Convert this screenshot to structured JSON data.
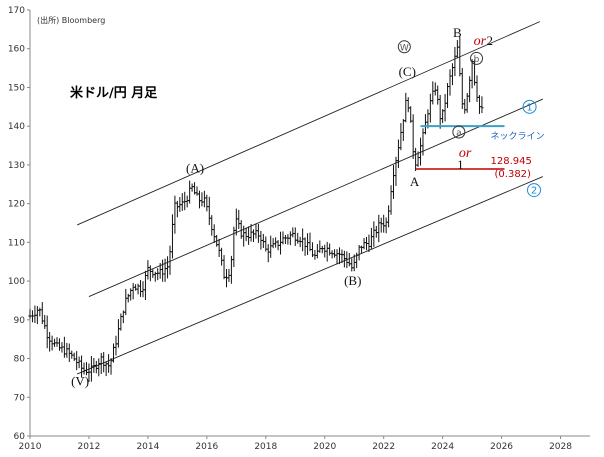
{
  "chart_data": {
    "type": "ohlc",
    "title": "米ドル/円 月足",
    "source": "(出所) Bloomberg",
    "xlim": [
      2010,
      2029
    ],
    "ylim": [
      60,
      170
    ],
    "x_ticks": [
      2010,
      2012,
      2014,
      2016,
      2018,
      2020,
      2022,
      2024,
      2026,
      2028
    ],
    "y_ticks": [
      60,
      70,
      80,
      90,
      100,
      110,
      120,
      130,
      140,
      150,
      160,
      170
    ],
    "price_path": [
      [
        2010.0,
        91
      ],
      [
        2010.3,
        93
      ],
      [
        2010.6,
        86
      ],
      [
        2010.9,
        83
      ],
      [
        2011.2,
        82
      ],
      [
        2011.5,
        80
      ],
      [
        2011.8,
        77
      ],
      [
        2012.1,
        77
      ],
      [
        2012.4,
        80
      ],
      [
        2012.7,
        78
      ],
      [
        2012.9,
        84
      ],
      [
        2013.2,
        94
      ],
      [
        2013.5,
        99
      ],
      [
        2013.8,
        98
      ],
      [
        2014.0,
        103
      ],
      [
        2014.4,
        102
      ],
      [
        2014.7,
        104
      ],
      [
        2014.9,
        119
      ],
      [
        2015.2,
        120
      ],
      [
        2015.5,
        124
      ],
      [
        2015.7,
        121
      ],
      [
        2015.9,
        121
      ],
      [
        2016.1,
        116
      ],
      [
        2016.4,
        108
      ],
      [
        2016.6,
        101
      ],
      [
        2016.8,
        103
      ],
      [
        2016.95,
        116
      ],
      [
        2017.2,
        112
      ],
      [
        2017.5,
        112
      ],
      [
        2017.8,
        112
      ],
      [
        2018.0,
        108
      ],
      [
        2018.3,
        109
      ],
      [
        2018.6,
        111
      ],
      [
        2018.9,
        112
      ],
      [
        2019.2,
        111
      ],
      [
        2019.5,
        108
      ],
      [
        2019.7,
        106
      ],
      [
        2019.9,
        109
      ],
      [
        2020.2,
        108
      ],
      [
        2020.5,
        107
      ],
      [
        2020.8,
        105
      ],
      [
        2020.95,
        103
      ],
      [
        2021.2,
        109
      ],
      [
        2021.5,
        110
      ],
      [
        2021.9,
        115
      ],
      [
        2022.1,
        115
      ],
      [
        2022.3,
        127
      ],
      [
        2022.5,
        135
      ],
      [
        2022.8,
        148
      ],
      [
        2022.95,
        138
      ],
      [
        2023.05,
        130
      ],
      [
        2023.3,
        136
      ],
      [
        2023.5,
        144
      ],
      [
        2023.75,
        150
      ],
      [
        2023.95,
        141
      ],
      [
        2024.2,
        151
      ],
      [
        2024.4,
        157
      ],
      [
        2024.5,
        160
      ],
      [
        2024.7,
        143
      ],
      [
        2024.85,
        149
      ],
      [
        2025.0,
        157
      ],
      [
        2025.1,
        151
      ],
      [
        2025.3,
        143
      ],
      [
        2025.4,
        146
      ]
    ],
    "channels": [
      {
        "name": "upper",
        "x": [
          2011.6,
          2027.3
        ],
        "y": [
          114.5,
          167
        ]
      },
      {
        "name": "middle",
        "x": [
          2012.0,
          2027.4
        ],
        "y": [
          96,
          147
        ]
      },
      {
        "name": "lower",
        "x": [
          2011.6,
          2027.4
        ],
        "y": [
          76,
          127
        ]
      }
    ],
    "neckline": {
      "label": "ネックライン",
      "x": [
        2023.25,
        2026.1
      ],
      "y": 140,
      "color": "#3aa0c8"
    },
    "support_line": {
      "x": [
        2023.1,
        2026.1
      ],
      "y": 128.945,
      "color": "#c00000",
      "value": "128.945",
      "ratio": "(0.382)"
    },
    "wave_labels": [
      {
        "text": "(V)",
        "x": 2011.7,
        "y": 73
      },
      {
        "text": "(A)",
        "x": 2015.6,
        "y": 128
      },
      {
        "text": "(B)",
        "x": 2020.95,
        "y": 99
      },
      {
        "text": "(C)",
        "x": 2022.8,
        "y": 153
      },
      {
        "text": "A",
        "x": 2023.05,
        "y": 124.5
      },
      {
        "text": "B",
        "x": 2024.5,
        "y": 163
      },
      {
        "text": "1",
        "x": 2024.6,
        "y": 129
      },
      {
        "text": "2",
        "x": 2025.6,
        "y": 161
      }
    ],
    "circled_labels": [
      {
        "text": "W",
        "x": 2022.7,
        "y": 160.5
      },
      {
        "text": "a",
        "x": 2024.55,
        "y": 138.5
      },
      {
        "text": "b",
        "x": 2025.15,
        "y": 157.5
      }
    ],
    "or_labels": [
      {
        "text": "or",
        "x": 2025.05,
        "y": 161
      },
      {
        "text": "or",
        "x": 2024.55,
        "y": 132
      }
    ],
    "channel_markers": [
      {
        "text": "1",
        "x": 2026.95,
        "y": 145
      },
      {
        "text": "2",
        "x": 2027.1,
        "y": 123.5
      }
    ]
  }
}
